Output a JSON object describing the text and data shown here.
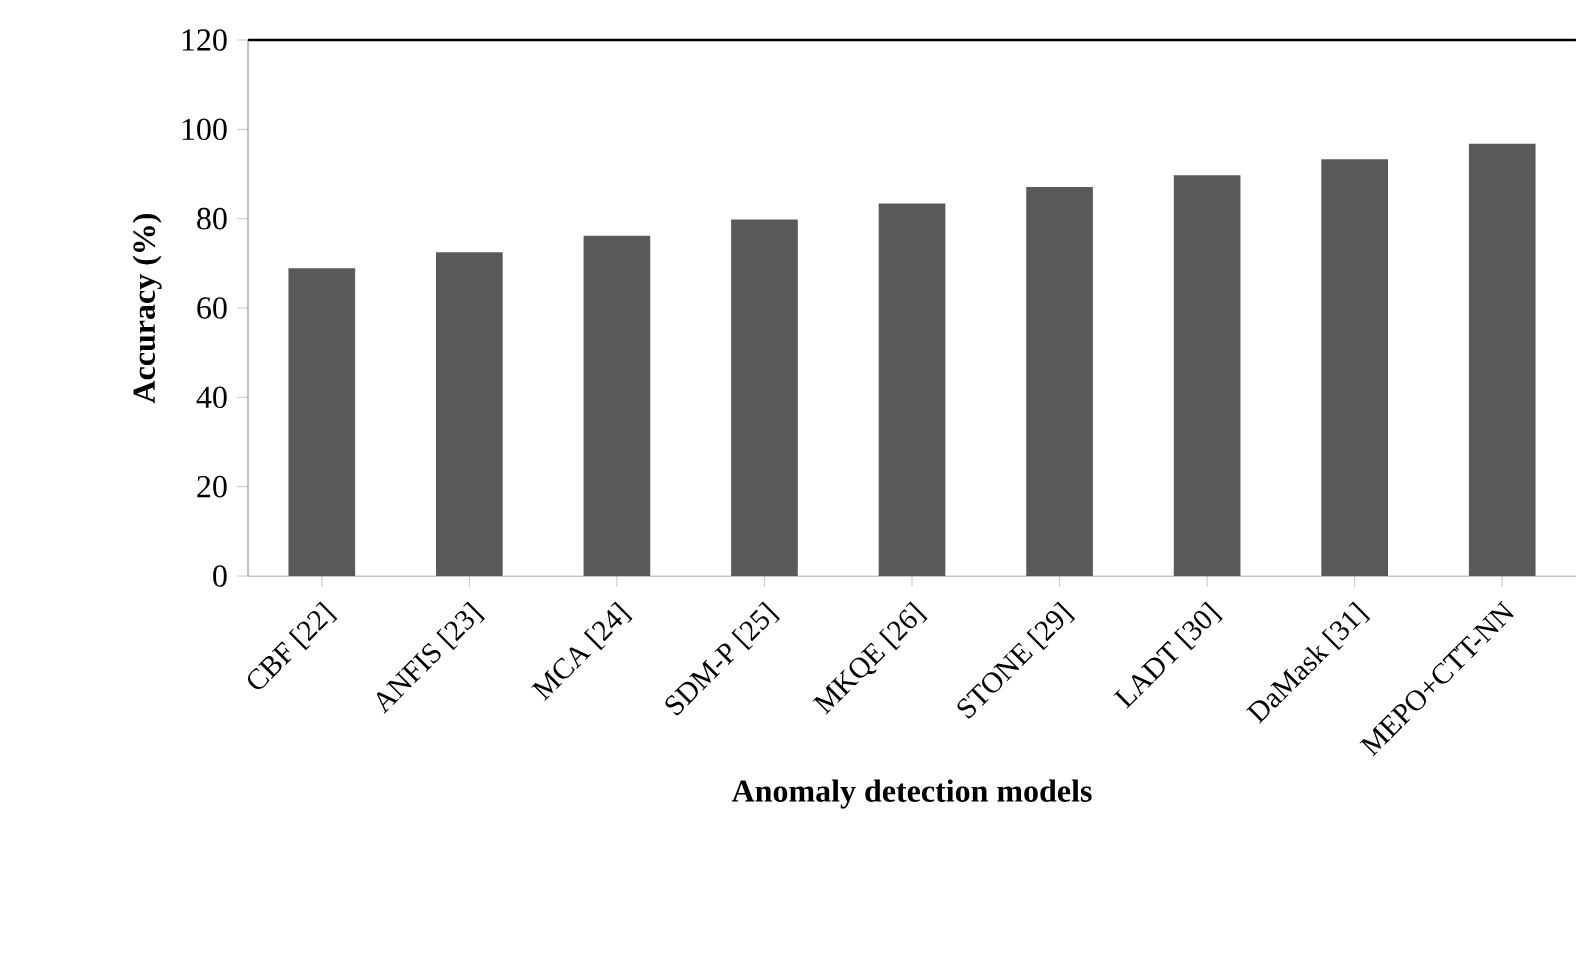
{
  "chart_data": {
    "type": "bar",
    "xlabel": "Anomaly detection models",
    "ylabel": "Accuracy (%)",
    "categories": [
      "CBF [22]",
      "ANFIS [23]",
      "MCA [24]",
      "SDM-P [25]",
      "MKQE [26]",
      "STONE [29]",
      "LADT [30]",
      "DaMask [31]",
      "MEPO+CTT-NN"
    ],
    "values": [
      68.9,
      72.5,
      76.2,
      79.8,
      83.4,
      87.1,
      89.7,
      93.3,
      96.8
    ],
    "color": "#595959",
    "ylim": [
      0,
      120
    ],
    "yticks": [
      0,
      20,
      40,
      60,
      80,
      100,
      120
    ],
    "grid": false
  }
}
